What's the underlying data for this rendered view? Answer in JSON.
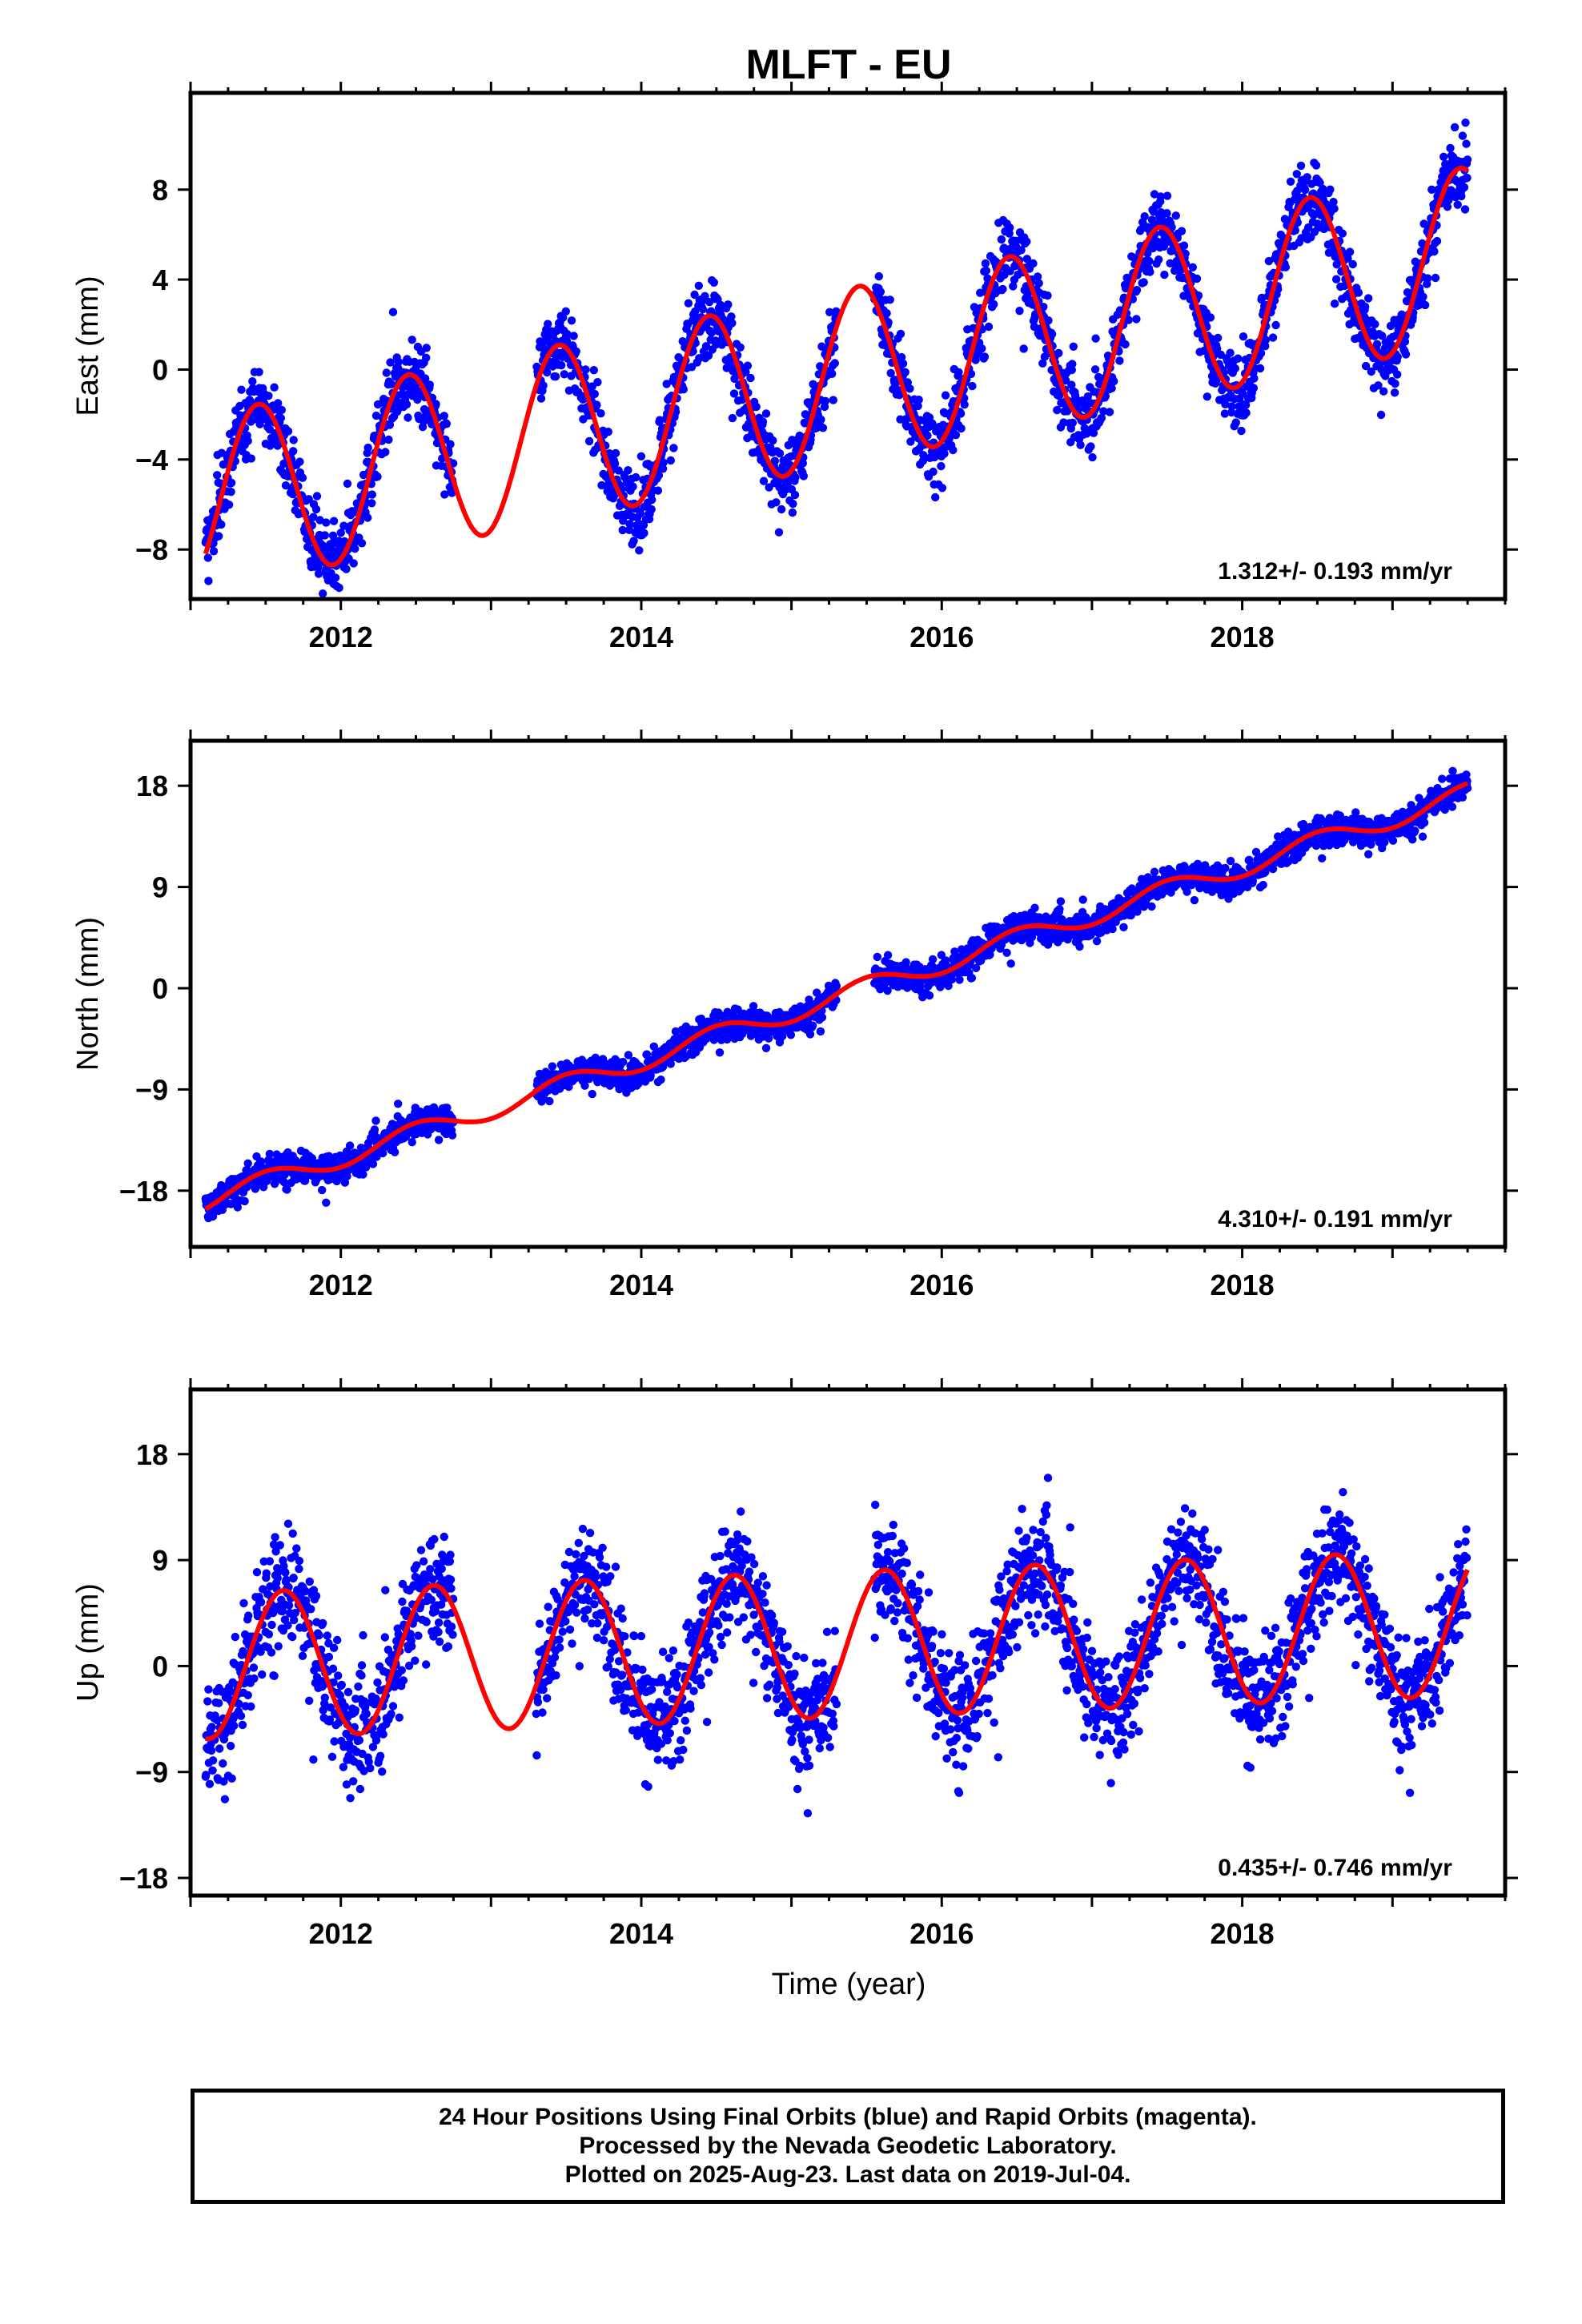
{
  "chart_data": {
    "type": "scatter",
    "title": "MLFT - EU",
    "xlabel": "Time (year)",
    "xlim": [
      2011.0,
      2019.75
    ],
    "x_ticks": [
      "2012",
      "2014",
      "2016",
      "2018"
    ],
    "colors": {
      "points": "#0000ff",
      "fit": "#ff0000",
      "axes": "#000000"
    },
    "panels": [
      {
        "ylabel": "East (mm)",
        "ylim": [
          -10.2,
          12.3
        ],
        "y_ticks": [
          "-8",
          "-4",
          "0",
          "4",
          "8"
        ],
        "y_tick_values": [
          -8,
          -4,
          0,
          4,
          8
        ],
        "rate_label": "1.312+/- 0.193 mm/yr",
        "model": {
          "offset": -5.9,
          "rate": 1.312,
          "amplitude": 3.9,
          "peak_phase": 0.45,
          "scatter": 1.1
        }
      },
      {
        "ylabel": "North (mm)",
        "ylim": [
          -23.0,
          22.0
        ],
        "y_ticks": [
          "-18",
          "-9",
          "0",
          "9",
          "18"
        ],
        "y_tick_values": [
          -18,
          -9,
          0,
          9,
          18
        ],
        "rate_label": "4.310+/- 0.191 mm/yr",
        "model": {
          "offset": -18.9,
          "rate": 4.31,
          "amplitude": 0.9,
          "peak_phase": 0.5,
          "scatter": 0.9
        }
      },
      {
        "ylabel": "Up (mm)",
        "ylim": [
          -19.5,
          23.5
        ],
        "y_ticks": [
          "-18",
          "-9",
          "0",
          "9",
          "18"
        ],
        "y_tick_values": [
          -18,
          -9,
          0,
          9,
          18
        ],
        "rate_label": "0.435+/- 0.746 mm/yr",
        "model": {
          "offset": 0.0,
          "rate": 0.435,
          "amplitude": 6.2,
          "peak_phase": 0.62,
          "scatter": 3.2
        }
      }
    ],
    "data_range": [
      2011.1,
      2019.5
    ],
    "data_gaps": [
      [
        2012.75,
        2013.3
      ],
      [
        2015.3,
        2015.55
      ]
    ]
  },
  "caption": {
    "line1": "24 Hour Positions Using Final Orbits (blue) and Rapid Orbits (magenta).",
    "line2": "Processed by the Nevada Geodetic Laboratory.",
    "line3": "Plotted on 2025-Aug-23. Last data on 2019-Jul-04."
  }
}
